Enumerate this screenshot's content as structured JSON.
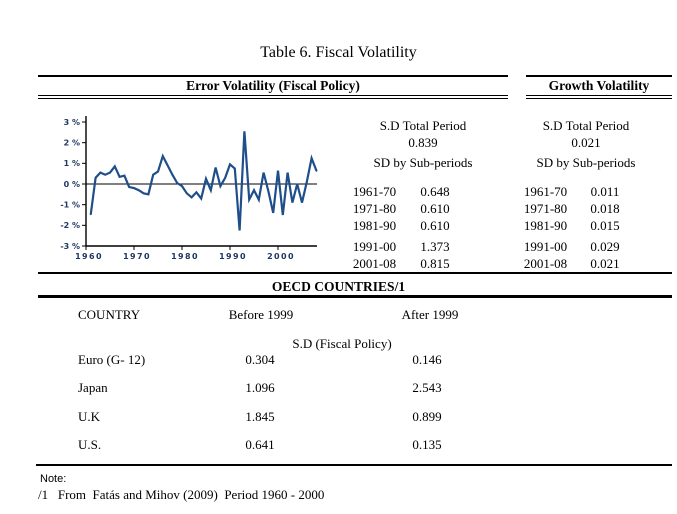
{
  "page": {
    "title": "Table 6. Fiscal Volatility"
  },
  "sections": {
    "error_volatility": {
      "header": "Error Volatility (Fiscal Policy)",
      "stats": {
        "total_label": "S.D Total Period",
        "total_value": "0.839",
        "sub_label": "SD by Sub-periods",
        "rows": [
          {
            "period": "1961-70",
            "value": "0.648"
          },
          {
            "period": "1971-80",
            "value": "0.610"
          },
          {
            "period": "1981-90",
            "value": "0.610"
          },
          {
            "period": "1991-00",
            "value": "1.373"
          },
          {
            "period": "2001-08",
            "value": "0.815"
          }
        ]
      }
    },
    "growth_volatility": {
      "header": "Growth Volatility",
      "stats": {
        "total_label": "S.D Total Period",
        "total_value": "0.021",
        "sub_label": "SD by Sub-periods",
        "rows": [
          {
            "period": "1961-70",
            "value": "0.011"
          },
          {
            "period": "1971-80",
            "value": "0.018"
          },
          {
            "period": "1981-90",
            "value": "0.015"
          },
          {
            "period": "1991-00",
            "value": "0.029"
          },
          {
            "period": "2001-08",
            "value": "0.021"
          }
        ]
      }
    },
    "oecd": {
      "header": "OECD COUNTRIES/1",
      "col_country": "COUNTRY",
      "col_before": "Before 1999",
      "col_after": "After 1999",
      "sub_header": "S.D (Fiscal Policy)",
      "rows": [
        {
          "country": "Euro (G- 12)",
          "before": "0.304",
          "after": "0.146"
        },
        {
          "country": "Japan",
          "before": "1.096",
          "after": "2.543"
        },
        {
          "country": "U.K",
          "before": "1.845",
          "after": "0.899"
        },
        {
          "country": "U.S.",
          "before": "0.641",
          "after": "0.135"
        }
      ]
    },
    "note": {
      "label": "Note:",
      "text": "/1   From  Fatás and Mihov (2009)  Period 1960 - 2000"
    }
  },
  "chart_data": {
    "type": "line",
    "title": "Error Volatility (Fiscal Policy), annual series",
    "xlabel": "",
    "ylabel": "",
    "xlim": [
      1960,
      2008
    ],
    "ylim": [
      -3,
      3
    ],
    "grid": false,
    "legend": "none",
    "line_color": "#1f4e8a",
    "tick_label_color": "#1f3864",
    "xticks": [
      1960,
      1970,
      1980,
      1990,
      2000
    ],
    "ytick_labels": [
      "3 %",
      "2 %",
      "1 %",
      "0 %",
      "-1 %",
      "-2 %",
      "-3 %"
    ],
    "x": [
      1961,
      1962,
      1963,
      1964,
      1965,
      1966,
      1967,
      1968,
      1969,
      1970,
      1971,
      1972,
      1973,
      1974,
      1975,
      1976,
      1977,
      1978,
      1979,
      1980,
      1981,
      1982,
      1983,
      1984,
      1985,
      1986,
      1987,
      1988,
      1989,
      1990,
      1991,
      1992,
      1993,
      1994,
      1995,
      1996,
      1997,
      1998,
      1999,
      2000,
      2001,
      2002,
      2003,
      2004,
      2005,
      2006,
      2007,
      2008
    ],
    "values": [
      -1.45,
      0.3,
      0.55,
      0.45,
      0.55,
      0.85,
      0.35,
      0.4,
      -0.15,
      -0.2,
      -0.3,
      -0.45,
      -0.5,
      0.45,
      0.6,
      1.35,
      0.9,
      0.45,
      0.05,
      -0.1,
      -0.45,
      -0.65,
      -0.4,
      -0.7,
      0.25,
      -0.3,
      0.8,
      -0.1,
      0.3,
      0.95,
      0.75,
      -2.25,
      2.55,
      -0.75,
      -0.3,
      -0.76,
      0.55,
      -0.35,
      -1.4,
      0.65,
      -1.5,
      0.55,
      -0.9,
      0.0,
      -0.9,
      0.1,
      1.25,
      0.65
    ]
  }
}
